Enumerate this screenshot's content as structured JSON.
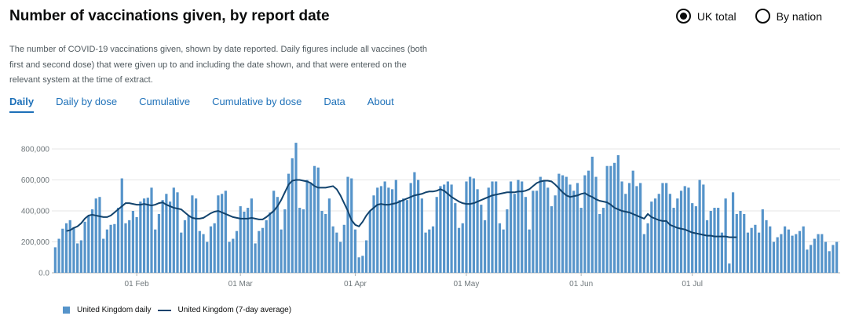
{
  "header": {
    "title": "Number of vaccinations given, by report date",
    "radio_options": [
      "UK total",
      "By nation"
    ],
    "selected": "UK total"
  },
  "description": "The number of COVID-19 vaccinations given, shown by date reported. Daily figures include all vaccines (both first and second dose) that were given up to and including the date shown, and that were entered on the relevant system at the time of extract.",
  "tabs": [
    "Daily",
    "Daily by dose",
    "Cumulative",
    "Cumulative by dose",
    "Data",
    "About"
  ],
  "active_tab": "Daily",
  "legend": {
    "daily": "United Kingdom daily",
    "avg": "United Kingdom (7-day average)"
  },
  "colors": {
    "bar": "#5694ca",
    "line": "#12436d",
    "link": "#1d70b8",
    "axis": "#6f777b"
  },
  "chart_data": {
    "type": "bar",
    "x_start": "2021-01-10",
    "x_end": "2021-07-22",
    "ylim": [
      0,
      800000
    ],
    "yticks": [
      "0.0",
      "200,000",
      "400,000",
      "600,000",
      "800,000"
    ],
    "yticks_values": [
      0,
      200000,
      400000,
      600000,
      800000
    ],
    "xticks": [
      {
        "date": "2021-02-01",
        "label": "01 Feb"
      },
      {
        "date": "2021-03-01",
        "label": "01 Mar"
      },
      {
        "date": "2021-04-01",
        "label": "01 Apr"
      },
      {
        "date": "2021-05-01",
        "label": "01 May"
      },
      {
        "date": "2021-06-01",
        "label": "01 Jun"
      },
      {
        "date": "2021-07-01",
        "label": "01 Jul"
      }
    ],
    "grid": true,
    "legend_position": "bottom-left",
    "series": [
      {
        "name": "United Kingdom daily",
        "type": "bar",
        "values": [
          165000,
          220000,
          285000,
          320000,
          340000,
          295000,
          190000,
          210000,
          330000,
          370000,
          410000,
          480000,
          490000,
          220000,
          280000,
          310000,
          315000,
          420000,
          610000,
          320000,
          340000,
          400000,
          360000,
          460000,
          480000,
          485000,
          550000,
          280000,
          380000,
          470000,
          510000,
          460000,
          550000,
          520000,
          260000,
          340000,
          370000,
          500000,
          480000,
          270000,
          250000,
          200000,
          300000,
          320000,
          500000,
          510000,
          530000,
          200000,
          220000,
          270000,
          430000,
          395000,
          420000,
          480000,
          190000,
          270000,
          290000,
          340000,
          390000,
          530000,
          490000,
          280000,
          410000,
          640000,
          740000,
          840000,
          420000,
          410000,
          600000,
          580000,
          690000,
          680000,
          400000,
          380000,
          480000,
          300000,
          260000,
          200000,
          310000,
          620000,
          610000,
          280000,
          100000,
          110000,
          210000,
          400000,
          500000,
          550000,
          560000,
          590000,
          550000,
          540000,
          600000,
          470000,
          480000,
          470000,
          580000,
          650000,
          600000,
          480000,
          260000,
          280000,
          300000,
          490000,
          560000,
          570000,
          590000,
          570000,
          450000,
          290000,
          320000,
          590000,
          620000,
          610000,
          540000,
          440000,
          340000,
          550000,
          590000,
          590000,
          320000,
          280000,
          410000,
          590000,
          510000,
          600000,
          590000,
          490000,
          280000,
          530000,
          530000,
          620000,
          600000,
          550000,
          430000,
          500000,
          640000,
          630000,
          620000,
          570000,
          530000,
          580000,
          420000,
          630000,
          660000,
          750000,
          620000,
          380000,
          420000,
          690000,
          690000,
          710000,
          760000,
          590000,
          510000,
          580000,
          660000,
          560000,
          580000,
          250000,
          320000,
          460000,
          480000,
          510000,
          580000,
          580000,
          510000,
          420000,
          480000,
          530000,
          560000,
          550000,
          450000,
          430000,
          600000,
          570000,
          340000,
          400000,
          420000,
          420000,
          260000,
          480000,
          60000,
          520000,
          380000,
          400000,
          380000,
          260000,
          290000,
          310000,
          260000,
          410000,
          340000,
          300000,
          200000,
          230000,
          250000,
          300000,
          280000,
          240000,
          250000,
          270000,
          300000,
          150000,
          180000,
          220000,
          250000,
          250000,
          200000,
          140000,
          180000,
          200000
        ]
      },
      {
        "name": "United Kingdom (7-day average)",
        "type": "line",
        "start_index": 3,
        "values": [
          270000,
          275000,
          290000,
          300000,
          320000,
          350000,
          370000,
          375000,
          370000,
          365000,
          360000,
          360000,
          370000,
          390000,
          410000,
          430000,
          450000,
          450000,
          445000,
          440000,
          440000,
          445000,
          440000,
          435000,
          440000,
          450000,
          455000,
          440000,
          430000,
          420000,
          415000,
          410000,
          390000,
          370000,
          355000,
          350000,
          350000,
          355000,
          370000,
          385000,
          395000,
          400000,
          390000,
          380000,
          370000,
          360000,
          355000,
          350000,
          350000,
          350000,
          355000,
          350000,
          345000,
          345000,
          360000,
          380000,
          400000,
          430000,
          470000,
          520000,
          570000,
          595000,
          600000,
          600000,
          595000,
          590000,
          580000,
          560000,
          550000,
          550000,
          550000,
          555000,
          560000,
          540000,
          500000,
          450000,
          400000,
          340000,
          310000,
          300000,
          330000,
          370000,
          400000,
          420000,
          440000,
          445000,
          440000,
          440000,
          445000,
          450000,
          460000,
          470000,
          480000,
          490000,
          500000,
          505000,
          510000,
          520000,
          525000,
          525000,
          530000,
          540000,
          530000,
          510000,
          490000,
          475000,
          460000,
          450000,
          445000,
          445000,
          450000,
          460000,
          470000,
          480000,
          490000,
          500000,
          505000,
          510000,
          515000,
          520000,
          520000,
          520000,
          525000,
          525000,
          530000,
          540000,
          560000,
          580000,
          590000,
          595000,
          595000,
          590000,
          570000,
          545000,
          520000,
          500000,
          490000,
          495000,
          500000,
          510000,
          515000,
          500000,
          490000,
          475000,
          465000,
          460000,
          455000,
          440000,
          420000,
          410000,
          400000,
          395000,
          390000,
          380000,
          370000,
          360000,
          350000,
          380000,
          360000,
          350000,
          340000,
          335000,
          335000,
          310000,
          300000,
          290000,
          285000,
          280000,
          270000,
          260000,
          255000,
          250000,
          245000,
          240000,
          240000,
          235000,
          235000,
          235000,
          235000,
          230000,
          230000,
          230000
        ]
      }
    ]
  }
}
